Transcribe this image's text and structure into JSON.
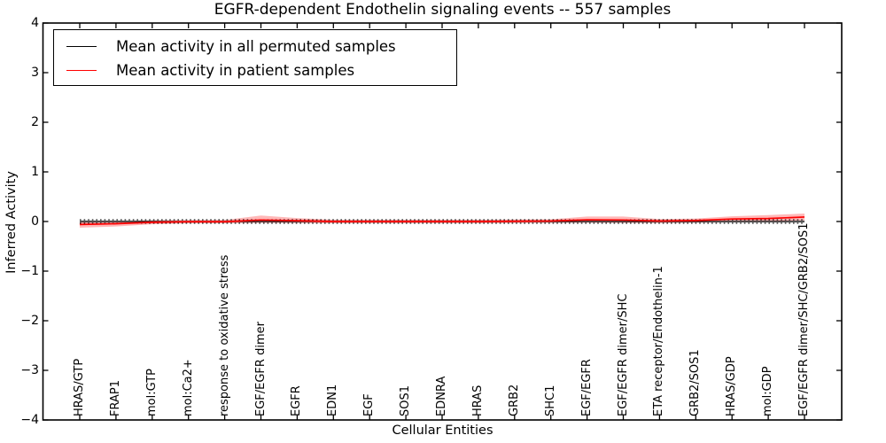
{
  "figure": {
    "title": "EGFR-dependent Endothelin signaling events -- 557 samples"
  },
  "chart_data": {
    "type": "line",
    "title": "EGFR-dependent Endothelin signaling events -- 557 samples",
    "xlabel": "Cellular Entities",
    "ylabel": "Inferred Activity",
    "ylim": [
      -4,
      4
    ],
    "ytick_values": [
      4,
      3,
      2,
      1,
      0,
      -1,
      -2,
      -3,
      -4
    ],
    "ytick_labels": [
      "4",
      "3",
      "2",
      "1",
      "0",
      "−1",
      "−2",
      "−3",
      "−4"
    ],
    "grid": false,
    "legend_position": "upper left",
    "categories": [
      "HRAS/GTP",
      "FRAP1",
      "mol:GTP",
      "mol:Ca2+",
      "response to oxidative stress",
      "EGF/EGFR dimer",
      "EGFR",
      "EDN1",
      "EGF",
      "SOS1",
      "EDNRA",
      "HRAS",
      "GRB2",
      "SHC1",
      "EGF/EGFR",
      "EGF/EGFR dimer/SHC",
      "ETA receptor/Endothelin-1",
      "GRB2/SOS1",
      "HRAS/GDP",
      "mol:GDP",
      "EGF/EGFR dimer/SHC/GRB2/SOS1"
    ],
    "series": [
      {
        "name": "Mean activity in all permuted samples",
        "color": "#000000",
        "line_style": "solid",
        "values": [
          0,
          0,
          0,
          0,
          0,
          0,
          0,
          0,
          0,
          0,
          0,
          0,
          0,
          0,
          0,
          0,
          0,
          0,
          0,
          0,
          0
        ]
      },
      {
        "name": "Mean activity in patient samples",
        "color": "#ff0000",
        "line_style": "solid",
        "values": [
          -0.06,
          -0.045,
          -0.015,
          -0.005,
          -0.005,
          0.03,
          0.015,
          0.0,
          0.0,
          0.0,
          0.0,
          0.0,
          0.005,
          0.01,
          0.035,
          0.03,
          0.01,
          0.02,
          0.05,
          0.06,
          0.09
        ]
      }
    ],
    "bands": [
      {
        "name": "permuted-range",
        "stroke": "#000000",
        "line_style": "dotted",
        "fill": "rgba(200,200,200,0.45)",
        "upper": [
          0.035,
          0.035,
          0.035,
          0.035,
          0.035,
          0.035,
          0.035,
          0.035,
          0.035,
          0.035,
          0.035,
          0.035,
          0.035,
          0.035,
          0.035,
          0.035,
          0.035,
          0.035,
          0.035,
          0.035,
          0.035
        ],
        "lower": [
          -0.035,
          -0.035,
          -0.035,
          -0.035,
          -0.035,
          -0.035,
          -0.035,
          -0.035,
          -0.035,
          -0.035,
          -0.035,
          -0.035,
          -0.035,
          -0.035,
          -0.035,
          -0.035,
          -0.035,
          -0.035,
          -0.035,
          -0.035,
          -0.035
        ]
      },
      {
        "name": "patient-std-band",
        "stroke": "none",
        "line_style": "none",
        "fill": "rgba(255,0,0,0.28)",
        "upper": [
          -0.005,
          0.0,
          0.02,
          0.025,
          0.03,
          0.12,
          0.07,
          0.035,
          0.035,
          0.035,
          0.035,
          0.035,
          0.04,
          0.045,
          0.1,
          0.1,
          0.05,
          0.06,
          0.105,
          0.13,
          0.16
        ],
        "lower": [
          -0.125,
          -0.1,
          -0.055,
          -0.035,
          -0.035,
          -0.025,
          -0.03,
          -0.035,
          -0.035,
          -0.035,
          -0.035,
          -0.035,
          -0.03,
          -0.025,
          -0.02,
          -0.025,
          -0.03,
          -0.02,
          -0.005,
          0.0,
          0.025
        ]
      }
    ],
    "legend": [
      {
        "label": "Mean activity in all permuted samples",
        "color": "#000000"
      },
      {
        "label": "Mean activity in patient samples",
        "color": "#ff0000"
      }
    ]
  }
}
